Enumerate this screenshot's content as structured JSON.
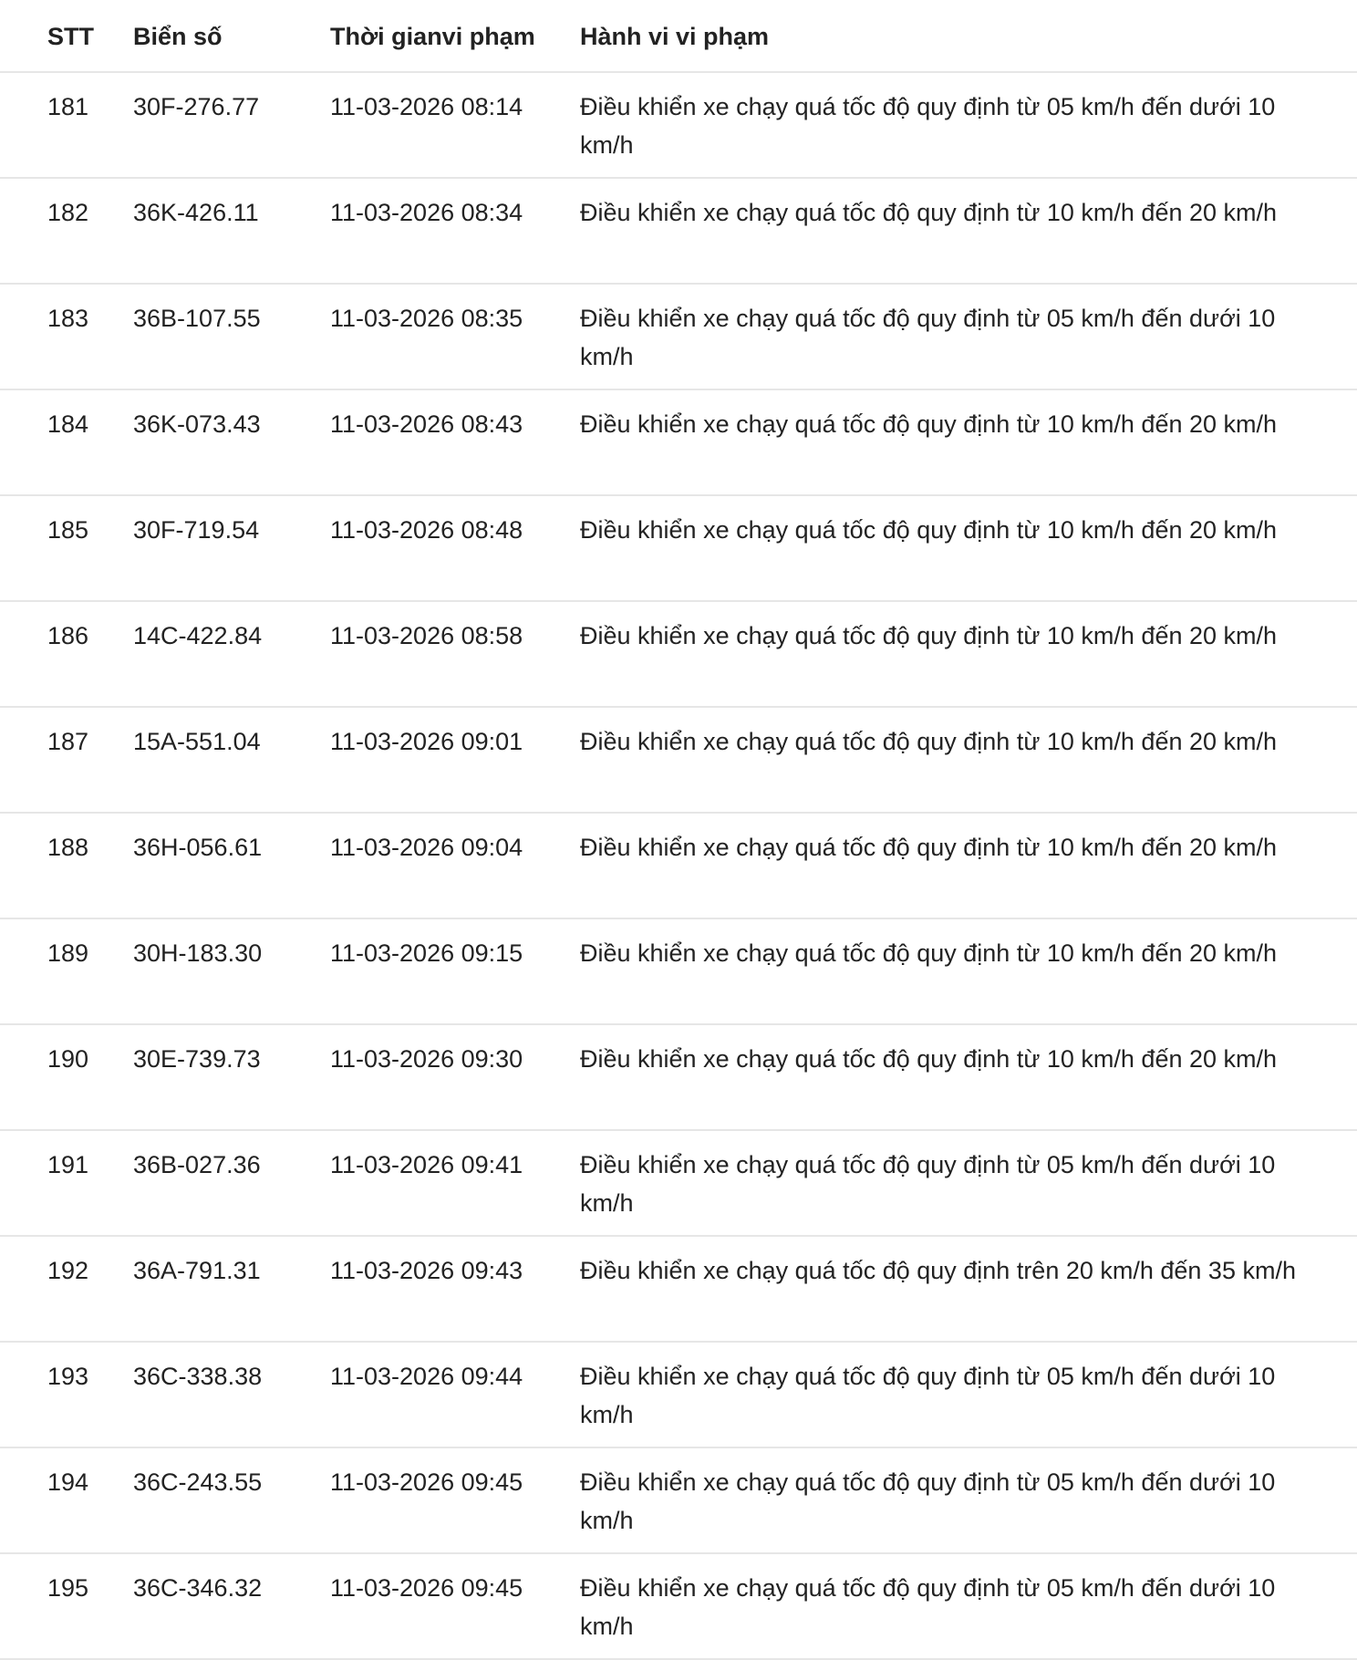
{
  "table": {
    "headers": [
      "STT",
      "Biển số",
      "Thời gianvi phạm",
      "Hành vi vi phạm"
    ],
    "rows": [
      [
        "181",
        "30F-276.77",
        "11-03-2026 08:14",
        "Điều khiển xe chạy quá tốc độ quy định từ 05 km/h đến dưới 10 km/h"
      ],
      [
        "182",
        "36K-426.11",
        "11-03-2026 08:34",
        "Điều khiển xe chạy quá tốc độ quy định từ 10 km/h đến 20 km/h"
      ],
      [
        "183",
        "36B-107.55",
        "11-03-2026 08:35",
        "Điều khiển xe chạy quá tốc độ quy định từ 05 km/h đến dưới 10 km/h"
      ],
      [
        "184",
        "36K-073.43",
        "11-03-2026 08:43",
        "Điều khiển xe chạy quá tốc độ quy định từ 10 km/h đến 20 km/h"
      ],
      [
        "185",
        "30F-719.54",
        "11-03-2026 08:48",
        "Điều khiển xe chạy quá tốc độ quy định từ 10 km/h đến 20 km/h"
      ],
      [
        "186",
        "14C-422.84",
        "11-03-2026 08:58",
        "Điều khiển xe chạy quá tốc độ quy định từ 10 km/h đến 20 km/h"
      ],
      [
        "187",
        "15A-551.04",
        "11-03-2026 09:01",
        "Điều khiển xe chạy quá tốc độ quy định từ 10 km/h đến 20 km/h"
      ],
      [
        "188",
        "36H-056.61",
        "11-03-2026 09:04",
        "Điều khiển xe chạy quá tốc độ quy định từ 10 km/h đến 20 km/h"
      ],
      [
        "189",
        "30H-183.30",
        "11-03-2026 09:15",
        "Điều khiển xe chạy quá tốc độ quy định từ 10 km/h đến 20 km/h"
      ],
      [
        "190",
        "30E-739.73",
        "11-03-2026 09:30",
        "Điều khiển xe chạy quá tốc độ quy định từ 10 km/h đến 20 km/h"
      ],
      [
        "191",
        "36B-027.36",
        "11-03-2026 09:41",
        "Điều khiển xe chạy quá tốc độ quy định từ 05 km/h đến dưới 10 km/h"
      ],
      [
        "192",
        "36A-791.31",
        "11-03-2026 09:43",
        "Điều khiển xe chạy quá tốc độ quy định trên 20 km/h đến 35 km/h"
      ],
      [
        "193",
        "36C-338.38",
        "11-03-2026 09:44",
        "Điều khiển xe chạy quá tốc độ quy định từ 05 km/h đến dưới 10 km/h"
      ],
      [
        "194",
        "36C-243.55",
        "11-03-2026 09:45",
        "Điều khiển xe chạy quá tốc độ quy định từ 05 km/h đến dưới 10 km/h"
      ],
      [
        "195",
        "36C-346.32",
        "11-03-2026 09:45",
        "Điều khiển xe chạy quá tốc độ quy định từ 05 km/h đến dưới 10 km/h"
      ]
    ]
  }
}
